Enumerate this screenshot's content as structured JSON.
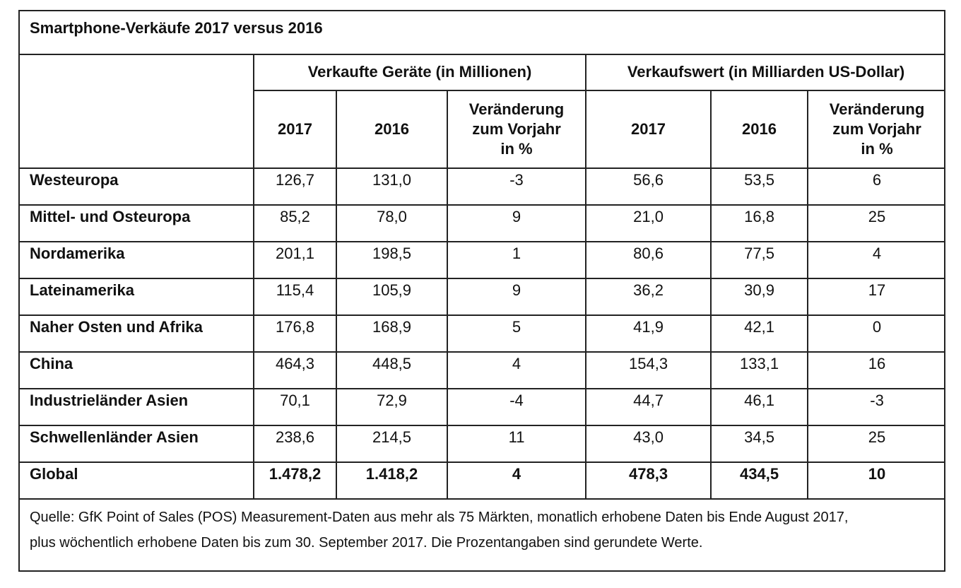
{
  "title": "Smartphone-Verkäufe 2017 versus 2016",
  "groups": {
    "units": "Verkaufte Geräte (in Millionen)",
    "value": "Verkaufswert (in Milliarden US-Dollar)"
  },
  "subheaders": {
    "year_2017": "2017",
    "year_2016": "2016",
    "change_line1": "Veränderung",
    "change_line2": "zum Vorjahr",
    "change_line3": "in %"
  },
  "rows": [
    {
      "region": "Westeuropa",
      "u2017": "126,7",
      "u2016": "131,0",
      "uchg": "-3",
      "v2017": "56,6",
      "v2016": "53,5",
      "vchg": "6"
    },
    {
      "region": "Mittel- und Osteuropa",
      "u2017": "85,2",
      "u2016": "78,0",
      "uchg": "9",
      "v2017": "21,0",
      "v2016": "16,8",
      "vchg": "25"
    },
    {
      "region": "Nordamerika",
      "u2017": "201,1",
      "u2016": "198,5",
      "uchg": "1",
      "v2017": "80,6",
      "v2016": "77,5",
      "vchg": "4"
    },
    {
      "region": "Lateinamerika",
      "u2017": "115,4",
      "u2016": "105,9",
      "uchg": "9",
      "v2017": "36,2",
      "v2016": "30,9",
      "vchg": "17"
    },
    {
      "region": "Naher Osten und Afrika",
      "u2017": "176,8",
      "u2016": "168,9",
      "uchg": "5",
      "v2017": "41,9",
      "v2016": "42,1",
      "vchg": "0"
    },
    {
      "region": "China",
      "u2017": "464,3",
      "u2016": "448,5",
      "uchg": "4",
      "v2017": "154,3",
      "v2016": "133,1",
      "vchg": "16"
    },
    {
      "region": "Industrieländer Asien",
      "u2017": "70,1",
      "u2016": "72,9",
      "uchg": "-4",
      "v2017": "44,7",
      "v2016": "46,1",
      "vchg": "-3"
    },
    {
      "region": "Schwellenländer Asien",
      "u2017": "238,6",
      "u2016": "214,5",
      "uchg": "11",
      "v2017": "43,0",
      "v2016": "34,5",
      "vchg": "25"
    },
    {
      "region": "Global",
      "u2017": "1.478,2",
      "u2016": "1.418,2",
      "uchg": "4",
      "v2017": "478,3",
      "v2016": "434,5",
      "vchg": "10"
    }
  ],
  "source": {
    "line1": "Quelle: GfK Point of Sales (POS) Measurement-Daten aus mehr als 75 Märkten, monatlich erhobene Daten bis Ende August 2017,",
    "line2": "plus wöchentlich erhobene Daten bis zum 30. September 2017. Die Prozentangaben sind gerundete Werte."
  }
}
